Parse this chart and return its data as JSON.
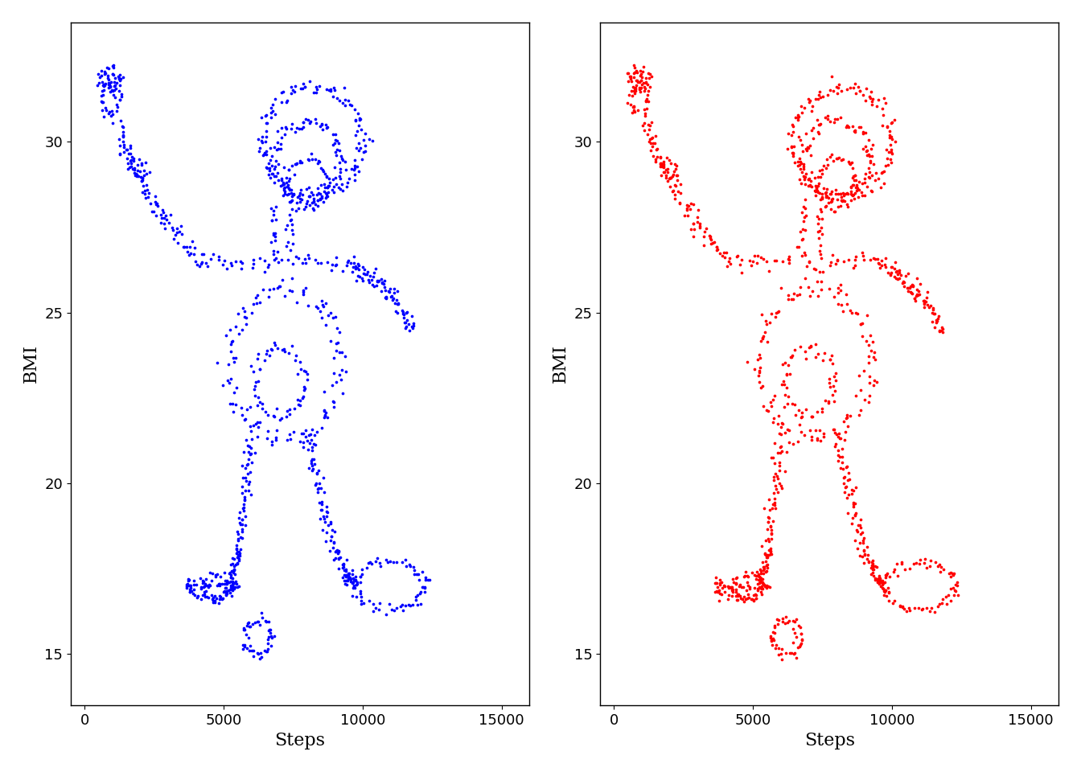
{
  "plot1_color": "#0000FF",
  "plot2_color": "#FF0000",
  "xlabel": "Steps",
  "ylabel": "BMI",
  "xlim": [
    -500,
    16000
  ],
  "ylim": [
    13.5,
    33.5
  ],
  "xticks": [
    0,
    5000,
    10000,
    15000
  ],
  "yticks": [
    15,
    20,
    25,
    30
  ],
  "dot_size": 7,
  "background_color": "#FFFFFF",
  "figsize": [
    13.44,
    9.6
  ],
  "dpi": 100,
  "font_family": "DejaVu Serif",
  "label_fontsize": 16,
  "tick_fontsize": 13
}
